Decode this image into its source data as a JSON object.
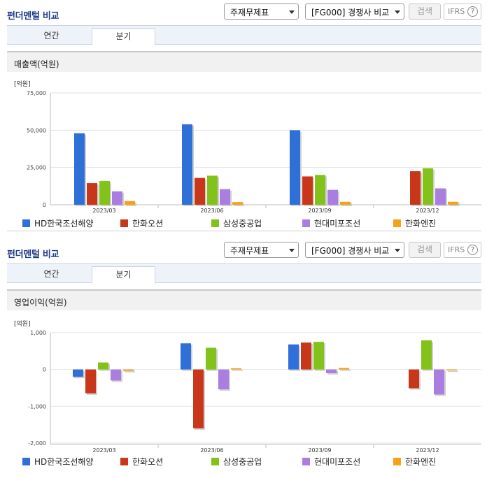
{
  "header": {
    "title": "펀더멘털 비교",
    "select_statement": "주재무제표",
    "select_compare": "[FG000] 경쟁사 비교",
    "search_label": "검색",
    "ifrs_label": "IFRS",
    "help_glyph": "?"
  },
  "tabs": [
    {
      "label": "연간",
      "active": false
    },
    {
      "label": "분기",
      "active": true
    }
  ],
  "colors": {
    "accent_title": "#1e3a8a",
    "series": [
      "#2f6fd8",
      "#c9371a",
      "#82c21a",
      "#a97ee0",
      "#f5a21b"
    ]
  },
  "chart_data": [
    {
      "type": "bar",
      "title": "매출액(억원)",
      "unit": "[억원]",
      "categories": [
        "2023/03",
        "2023/06",
        "2023/09",
        "2023/12"
      ],
      "ylim": [
        0,
        75000
      ],
      "yticks": [
        0,
        25000,
        50000,
        75000
      ],
      "ytick_labels": [
        "0",
        "25,000",
        "50,000",
        "75,000"
      ],
      "grid": true,
      "series": [
        {
          "name": "HD한국조선해양",
          "values": [
            48000,
            54000,
            50000,
            null
          ]
        },
        {
          "name": "한화오션",
          "values": [
            14500,
            18000,
            19000,
            22500
          ]
        },
        {
          "name": "삼성중공업",
          "values": [
            16000,
            19500,
            20000,
            24500
          ]
        },
        {
          "name": "현대미포조선",
          "values": [
            9000,
            10500,
            10000,
            11000
          ]
        },
        {
          "name": "한화엔진",
          "values": [
            2500,
            1800,
            2000,
            2000
          ]
        }
      ]
    },
    {
      "type": "bar",
      "title": "영업이익(억원)",
      "unit": "[억원]",
      "categories": [
        "2023/03",
        "2023/06",
        "2023/09",
        "2023/12"
      ],
      "ylim": [
        -2000,
        1000
      ],
      "yticks": [
        -2000,
        -1000,
        0,
        1000
      ],
      "ytick_labels": [
        "-2,000",
        "-1,000",
        "0",
        "1,000"
      ],
      "grid": true,
      "series": [
        {
          "name": "HD한국조선해양",
          "values": [
            -200,
            710,
            680,
            null
          ]
        },
        {
          "name": "한화오션",
          "values": [
            -650,
            -1600,
            730,
            -510
          ]
        },
        {
          "name": "삼성중공업",
          "values": [
            190,
            590,
            750,
            790
          ]
        },
        {
          "name": "현대미포조선",
          "values": [
            -300,
            -540,
            -100,
            -680
          ]
        },
        {
          "name": "한화엔진",
          "values": [
            -40,
            30,
            40,
            0
          ]
        }
      ]
    }
  ]
}
